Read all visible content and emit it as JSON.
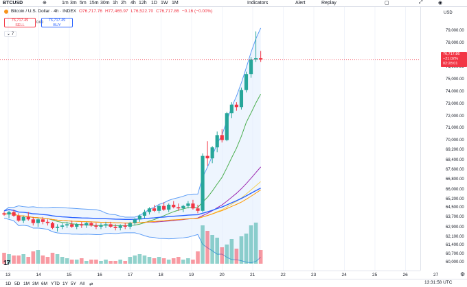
{
  "toolbar": {
    "symbol": "BTCUSD",
    "intervals": [
      "1m",
      "3m",
      "5m",
      "15m",
      "30m",
      "1h",
      "2h",
      "4h",
      "12h",
      "1D",
      "1W",
      "1M"
    ],
    "indicators_label": "Indicators",
    "alert_label": "Alert",
    "replay_label": "Replay"
  },
  "legend": {
    "title": "Bitcoin / U.S. Dollar · 4h · INDEX",
    "o": "O76,717.76",
    "h": "H77,465.97",
    "l": "L76,522.70",
    "c": "C76,717.86",
    "chg": "−0.16 (−0.00%)"
  },
  "trade": {
    "sell_price": "76,717.49",
    "sell_label": "SELL",
    "spread": "0.00",
    "buy_price": "76,717.49",
    "buy_label": "BUY",
    "collapse_label": "⌄ 7"
  },
  "price_axis": {
    "currency": "USD",
    "ticks": [
      "79,000.00",
      "78,000.00",
      "77,000.00",
      "76,000.00",
      "75,000.00",
      "74,000.00",
      "73,000.00",
      "72,000.00",
      "71,000.00",
      "70,000.00",
      "69,200.00",
      "68,400.00",
      "67,600.00",
      "66,800.00",
      "66,000.00",
      "65,200.00",
      "64,500.00",
      "63,700.00",
      "62,900.00",
      "62,100.00",
      "61,400.00",
      "60,700.00",
      "60,000.00"
    ],
    "current_price": "76,717.86",
    "current_change": "−21.02%",
    "countdown": "02:28:01"
  },
  "time_axis": {
    "labels": [
      "13",
      "14",
      "15",
      "16",
      "17",
      "18",
      "19",
      "20",
      "21",
      "22",
      "23",
      "24",
      "25",
      "26",
      "27"
    ]
  },
  "bottom": {
    "ranges": [
      "1D",
      "5D",
      "1M",
      "3M",
      "6M",
      "YTD",
      "1Y",
      "5Y",
      "All"
    ],
    "clock": "13:31:58 UTC"
  },
  "colors": {
    "up": "#26a69a",
    "down": "#f23645",
    "ma_blue": "#2962ff",
    "ma_orange": "#ff9800",
    "ma_yellow": "#f5d35a",
    "ma_purple": "#9c27b0",
    "band": "#5b9cf6",
    "ma_green": "#4caf50"
  },
  "chart_data": {
    "type": "candlestick",
    "symbol": "BTCUSD",
    "interval": "4h",
    "x_labels": [
      "13",
      "14",
      "15",
      "16",
      "17",
      "18",
      "19",
      "20",
      "21"
    ],
    "ohlc": [
      [
        64100,
        64250,
        63900,
        64000
      ],
      [
        64000,
        64300,
        63700,
        64200
      ],
      [
        64200,
        64400,
        63800,
        63900
      ],
      [
        63900,
        64100,
        63400,
        63500
      ],
      [
        63500,
        63900,
        63300,
        63800
      ],
      [
        63800,
        64200,
        63500,
        63600
      ],
      [
        63600,
        63800,
        63100,
        63300
      ],
      [
        63300,
        63700,
        63000,
        63600
      ],
      [
        63600,
        63800,
        63200,
        63400
      ],
      [
        63400,
        63600,
        63100,
        63300
      ],
      [
        63300,
        63400,
        62800,
        62900
      ],
      [
        62900,
        63200,
        62600,
        63000
      ],
      [
        63000,
        63300,
        62800,
        63100
      ],
      [
        63100,
        63400,
        62900,
        63200
      ],
      [
        63200,
        63500,
        62900,
        63000
      ],
      [
        63000,
        63300,
        62800,
        63200
      ],
      [
        63200,
        63400,
        62900,
        63100
      ],
      [
        63100,
        63400,
        62900,
        63300
      ],
      [
        63300,
        63400,
        63000,
        63100
      ],
      [
        63100,
        63300,
        62800,
        63000
      ],
      [
        63000,
        63300,
        62800,
        63100
      ],
      [
        63100,
        63400,
        62900,
        63200
      ],
      [
        63200,
        63400,
        62900,
        63000
      ],
      [
        63000,
        63200,
        62700,
        62900
      ],
      [
        62900,
        63200,
        62700,
        63100
      ],
      [
        63100,
        63300,
        62800,
        63000
      ],
      [
        63000,
        63400,
        62800,
        63300
      ],
      [
        63300,
        63700,
        63100,
        63600
      ],
      [
        63600,
        64000,
        63400,
        63900
      ],
      [
        63900,
        64400,
        63700,
        64200
      ],
      [
        64200,
        64600,
        64000,
        64500
      ],
      [
        64500,
        64800,
        64200,
        64300
      ],
      [
        64300,
        64800,
        64100,
        64700
      ],
      [
        64700,
        65000,
        64300,
        64400
      ],
      [
        64400,
        64900,
        64200,
        64800
      ],
      [
        64800,
        65100,
        64500,
        64600
      ],
      [
        64600,
        64900,
        64300,
        64500
      ],
      [
        64500,
        64800,
        64200,
        64700
      ],
      [
        64700,
        65100,
        64500,
        64900
      ],
      [
        64900,
        65200,
        64400,
        64500
      ],
      [
        64500,
        64800,
        64100,
        64300
      ],
      [
        64300,
        69000,
        64200,
        68800
      ],
      [
        68800,
        70000,
        68000,
        68600
      ],
      [
        68600,
        69600,
        68200,
        69500
      ],
      [
        69500,
        70800,
        69100,
        70500
      ],
      [
        70500,
        71000,
        69900,
        70100
      ],
      [
        70100,
        72400,
        70000,
        72300
      ],
      [
        72300,
        73200,
        71900,
        73000
      ],
      [
        73000,
        73200,
        72500,
        72800
      ],
      [
        72800,
        74400,
        72600,
        74200
      ],
      [
        74200,
        75700,
        74000,
        75500
      ],
      [
        75500,
        76900,
        75200,
        76700
      ],
      [
        76700,
        79000,
        76500,
        76800
      ],
      [
        76800,
        77400,
        76500,
        76700
      ]
    ],
    "volume": [
      8,
      7,
      6,
      6,
      7,
      5,
      9,
      10,
      6,
      5,
      8,
      7,
      5,
      4,
      3,
      3,
      4,
      2,
      3,
      3,
      2,
      3,
      2,
      2,
      3,
      2,
      5,
      6,
      7,
      6,
      5,
      4,
      5,
      4,
      3,
      4,
      5,
      3,
      4,
      3,
      9,
      28,
      24,
      21,
      19,
      12,
      14,
      18,
      11,
      20,
      22,
      28,
      30,
      10
    ],
    "moving_averages": [
      "blue",
      "orange",
      "yellow",
      "purple",
      "green"
    ],
    "grid": true
  }
}
